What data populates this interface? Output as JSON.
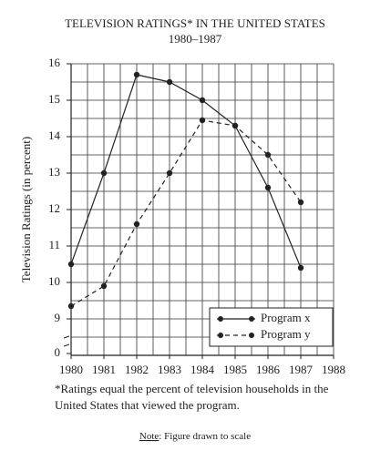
{
  "chart_data": {
    "type": "line",
    "title": "TELEVISION RATINGS* IN THE UNITED STATES",
    "subtitle": "1980–1987",
    "y_label": "Television Ratings (in percent)",
    "x": [
      1980,
      1981,
      1982,
      1983,
      1984,
      1985,
      1986,
      1987
    ],
    "series": [
      {
        "name": "Program x",
        "color": "#222222",
        "dash": "solid",
        "values": [
          10.5,
          13.0,
          15.7,
          15.5,
          15.0,
          14.3,
          12.6,
          10.4
        ]
      },
      {
        "name": "Program y",
        "color": "#222222",
        "dash": "dashed",
        "values": [
          9.35,
          9.9,
          11.6,
          13.0,
          14.45,
          14.3,
          13.5,
          12.2
        ]
      }
    ],
    "xlim": [
      1980,
      1988
    ],
    "xticks": [
      1980,
      1981,
      1982,
      1983,
      1984,
      1985,
      1986,
      1987,
      1988
    ],
    "ylim": [
      8,
      16
    ],
    "yticks": [
      0,
      9,
      10,
      11,
      12,
      13,
      14,
      15,
      16
    ],
    "axis_break": true,
    "grid": true,
    "legend": "lower right",
    "footnote": [
      "*Ratings equal the percent of television households in the",
      "United States that viewed the program."
    ],
    "note": {
      "label": "Note",
      "text": ": Figure drawn to scale"
    }
  }
}
